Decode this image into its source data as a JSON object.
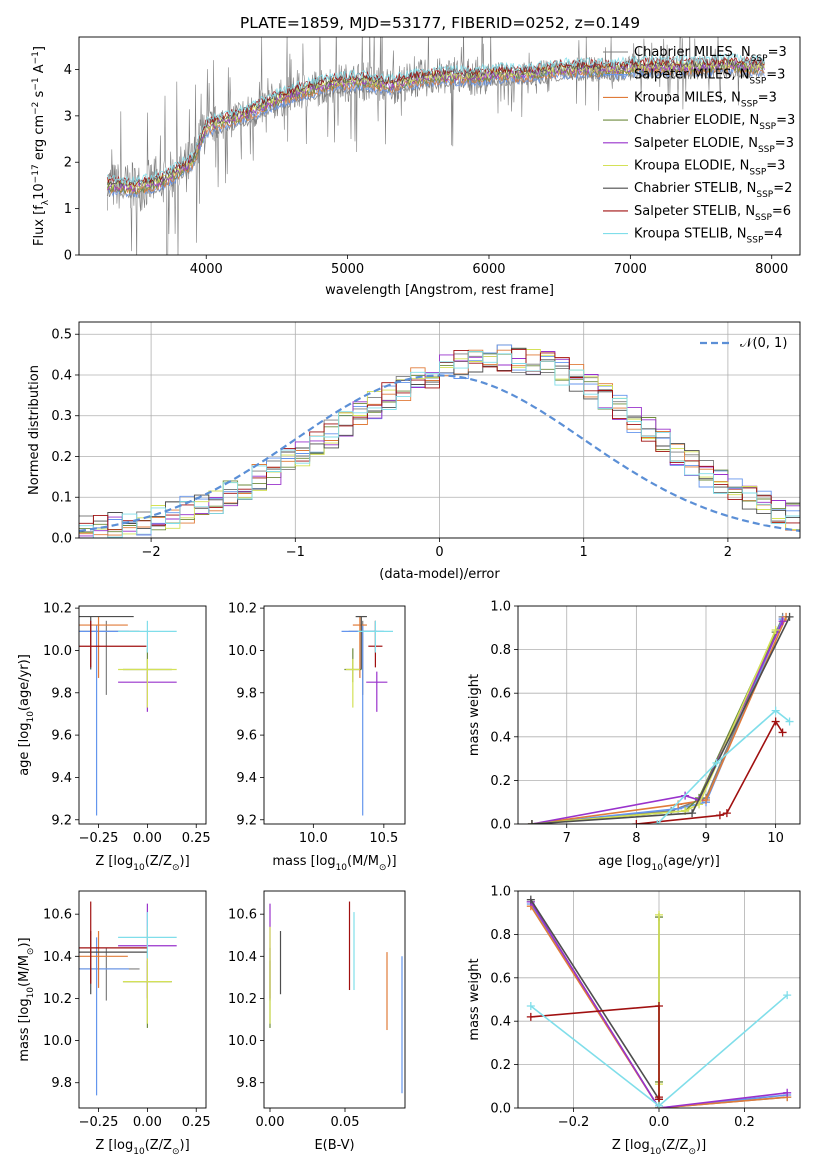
{
  "palette": {
    "chabrier_miles": "#7f7f7f",
    "salpeter_miles": "#6495ed",
    "kroupa_miles": "#e07b39",
    "chabrier_elodie": "#6e8b3d",
    "salpeter_elodie": "#9932cc",
    "kroupa_elodie": "#d4e157",
    "chabrier_stelib": "#4d4d4d",
    "salpeter_stelib": "#a01010",
    "kroupa_stelib": "#80deea",
    "gaussian": "#5b8fd6",
    "pink": "#e377c2",
    "orange2": "#ff7f0e",
    "lime": "#9acd32",
    "grid": "#b0b0b0"
  },
  "models": [
    {
      "name": "Chabrier MILES",
      "nssp": "3",
      "color": "#7f7f7f"
    },
    {
      "name": "Salpeter MILES",
      "nssp": "3",
      "color": "#6495ed"
    },
    {
      "name": "Kroupa MILES",
      "nssp": "3",
      "color": "#e07b39"
    },
    {
      "name": "Chabrier ELODIE",
      "nssp": "3",
      "color": "#6e8b3d"
    },
    {
      "name": "Salpeter ELODIE",
      "nssp": "3",
      "color": "#9932cc"
    },
    {
      "name": "Kroupa ELODIE",
      "nssp": "3",
      "color": "#d4e157"
    },
    {
      "name": "Chabrier STELIB",
      "nssp": "2",
      "color": "#4d4d4d"
    },
    {
      "name": "Salpeter STELIB",
      "nssp": "6",
      "color": "#a01010"
    },
    {
      "name": "Kroupa STELIB",
      "nssp": "4",
      "color": "#80deea"
    }
  ],
  "chart_data": [
    {
      "type": "line",
      "title": "PLATE=1859, MJD=53177, FIBERID=0252, z=0.149",
      "xlabel": "wavelength [Angstrom, rest frame]",
      "ylabel": "Flux [f$_\\lambda$10$^{-17}$ erg cm$^{-2}$ s$^{-1}$ A$^{-1}$]",
      "ylabel_parts": [
        "Flux [f",
        "λ",
        "10",
        "−17",
        " erg cm",
        "−2",
        " s",
        "−1",
        " A",
        "−1",
        "]"
      ],
      "xlim": [
        3100,
        8200
      ],
      "ylim": [
        0,
        4.7
      ],
      "xticks": [
        4000,
        5000,
        6000,
        7000,
        8000
      ],
      "yticks": [
        0,
        1,
        2,
        3,
        4
      ],
      "legend": "top-right",
      "legend_entries": [
        "Chabrier MILES, N_SSP=3",
        "Salpeter MILES, N_SSP=3",
        "Kroupa MILES, N_SSP=3",
        "Chabrier ELODIE, N_SSP=3",
        "Salpeter ELODIE, N_SSP=3",
        "Kroupa ELODIE, N_SSP=3",
        "Chabrier STELIB, N_SSP=2",
        "Salpeter STELIB, N_SSP=6",
        "Kroupa STELIB, N_SSP=4"
      ],
      "legend_labels": [
        {
          "pre": "Chabrier MILES, N",
          "sub": "SSP",
          "post": "=3"
        },
        {
          "pre": "Salpeter MILES, N",
          "sub": "SSP",
          "post": "=3"
        },
        {
          "pre": "Kroupa MILES, N",
          "sub": "SSP",
          "post": "=3"
        },
        {
          "pre": "Chabrier ELODIE, N",
          "sub": "SSP",
          "post": "=3"
        },
        {
          "pre": "Salpeter ELODIE, N",
          "sub": "SSP",
          "post": "=3"
        },
        {
          "pre": "Kroupa ELODIE, N",
          "sub": "SSP",
          "post": "=3"
        },
        {
          "pre": "Chabrier STELIB, N",
          "sub": "SSP",
          "post": "=2"
        },
        {
          "pre": "Salpeter STELIB, N",
          "sub": "SSP",
          "post": "=6"
        },
        {
          "pre": "Kroupa STELIB, N",
          "sub": "SSP",
          "post": "=4"
        }
      ],
      "continuum": {
        "x": [
          3300,
          3500,
          3700,
          3900,
          4000,
          4100,
          4300,
          4500,
          4700,
          4900,
          5100,
          5300,
          5500,
          5700,
          5900,
          6100,
          6300,
          6500,
          6700,
          6900,
          7100,
          7300,
          7500,
          7700,
          7900
        ],
        "y": [
          1.5,
          1.45,
          1.6,
          2.0,
          2.75,
          2.85,
          3.05,
          3.35,
          3.55,
          3.7,
          3.75,
          3.65,
          3.8,
          3.85,
          3.85,
          3.9,
          3.9,
          4.0,
          4.0,
          4.0,
          4.05,
          4.05,
          4.05,
          4.1,
          4.05
        ]
      }
    },
    {
      "type": "histogram",
      "xlabel": "(data-model)/error",
      "ylabel": "Normed distribution",
      "xlim": [
        -2.5,
        2.5
      ],
      "ylim": [
        0,
        0.53
      ],
      "xticks": [
        -2,
        -1,
        0,
        1,
        2
      ],
      "xtick_labels": [
        "−2",
        "−1",
        "0",
        "1",
        "2"
      ],
      "yticks": [
        0.0,
        0.1,
        0.2,
        0.3,
        0.4,
        0.5
      ],
      "grid": true,
      "legend": "top-right",
      "legend_label": "𝒩(0, 1)",
      "bin_width": 0.1,
      "bin_start": -2.5,
      "series_ref": [
        0.02,
        0.024,
        0.028,
        0.034,
        0.041,
        0.049,
        0.058,
        0.069,
        0.081,
        0.095,
        0.11,
        0.127,
        0.146,
        0.166,
        0.187,
        0.209,
        0.232,
        0.256,
        0.279,
        0.303,
        0.325,
        0.347,
        0.367,
        0.385,
        0.401,
        0.415,
        0.426,
        0.434,
        0.439,
        0.44,
        0.44,
        0.435,
        0.425,
        0.41,
        0.392,
        0.37,
        0.346,
        0.32,
        0.293,
        0.265,
        0.237,
        0.21,
        0.184,
        0.16,
        0.137,
        0.116,
        0.097,
        0.08,
        0.066,
        0.053
      ],
      "gaussian_x": [
        -2.5,
        -2.0,
        -1.5,
        -1.0,
        -0.5,
        0.0,
        0.5,
        1.0,
        1.5,
        2.0,
        2.5
      ],
      "gaussian_y": [
        0.018,
        0.054,
        0.13,
        0.242,
        0.352,
        0.399,
        0.352,
        0.242,
        0.13,
        0.054,
        0.018
      ]
    },
    {
      "type": "errorbar",
      "xlabel_parts": [
        "Z [log",
        "10",
        "(Z/Z",
        "⊙",
        ")]"
      ],
      "ylabel_parts": [
        "age  [log",
        "10",
        "(age/yr)]"
      ],
      "xlim": [
        -0.35,
        0.3
      ],
      "ylim": [
        9.18,
        10.21
      ],
      "xticks": [
        -0.25,
        0.0,
        0.25
      ],
      "xtick_labels": [
        "−0.25",
        "0.00",
        "0.25"
      ],
      "yticks": [
        9.2,
        9.4,
        9.6,
        9.8,
        10.0,
        10.2
      ],
      "points": [
        {
          "model": 0,
          "x": -0.21,
          "y": 10.09,
          "xerr": 0.34,
          "yerr_lo": 0.3,
          "yerr_hi": 0.05
        },
        {
          "model": 1,
          "x": -0.26,
          "y": 10.09,
          "xerr": 0.33,
          "yerr_lo": 0.87,
          "yerr_hi": 0.03
        },
        {
          "model": 2,
          "x": -0.25,
          "y": 10.12,
          "xerr": 0.3,
          "yerr_lo": 0.25,
          "yerr_hi": 0.04
        },
        {
          "model": 3,
          "x": 0.0,
          "y": 9.91,
          "xerr": 0.25,
          "yerr_lo": 0.06,
          "yerr_hi": 0.1
        },
        {
          "model": 4,
          "x": 0.0,
          "y": 9.85,
          "xerr": 0.3,
          "yerr_lo": 0.14,
          "yerr_hi": 0.05
        },
        {
          "model": 5,
          "x": 0.0,
          "y": 9.91,
          "xerr": 0.3,
          "yerr_lo": 0.18,
          "yerr_hi": 0.05
        },
        {
          "model": 6,
          "x": -0.29,
          "y": 10.16,
          "xerr": 0.44,
          "yerr_lo": 0.25,
          "yerr_hi": 0.0
        },
        {
          "model": 7,
          "x": -0.29,
          "y": 10.02,
          "xerr": 0.57,
          "yerr_lo": 0.1,
          "yerr_hi": 0.12
        },
        {
          "model": 8,
          "x": 0.0,
          "y": 10.09,
          "xerr": 0.3,
          "yerr_lo": 0.1,
          "yerr_hi": 0.05
        }
      ]
    },
    {
      "type": "errorbar",
      "xlabel_parts": [
        "mass [log",
        "10",
        "(M/M",
        "⊙",
        ")]"
      ],
      "xlim": [
        9.65,
        10.65
      ],
      "ylim": [
        9.18,
        10.21
      ],
      "xticks": [
        10.0,
        10.5
      ],
      "xtick_labels": [
        "10.0",
        "10.5"
      ],
      "yticks": [
        9.2,
        9.4,
        9.6,
        9.8,
        10.0,
        10.2
      ],
      "points": [
        {
          "model": 0,
          "x": 10.35,
          "y": 10.09,
          "xerr": 0.2,
          "yerr_lo": 0.3,
          "yerr_hi": 0.05
        },
        {
          "model": 1,
          "x": 10.35,
          "y": 10.09,
          "xerr": 0.3,
          "yerr_lo": 0.87,
          "yerr_hi": 0.03
        },
        {
          "model": 2,
          "x": 10.33,
          "y": 10.12,
          "xerr": 0.1,
          "yerr_lo": 0.25,
          "yerr_hi": 0.04
        },
        {
          "model": 3,
          "x": 10.28,
          "y": 9.91,
          "xerr": 0.12,
          "yerr_lo": 0.06,
          "yerr_hi": 0.1
        },
        {
          "model": 4,
          "x": 10.45,
          "y": 9.85,
          "xerr": 0.15,
          "yerr_lo": 0.14,
          "yerr_hi": 0.05
        },
        {
          "model": 5,
          "x": 10.28,
          "y": 9.91,
          "xerr": 0.1,
          "yerr_lo": 0.18,
          "yerr_hi": 0.05
        },
        {
          "model": 6,
          "x": 10.34,
          "y": 10.16,
          "xerr": 0.08,
          "yerr_lo": 0.25,
          "yerr_hi": 0.0
        },
        {
          "model": 7,
          "x": 10.44,
          "y": 10.02,
          "xerr": 0.1,
          "yerr_lo": 0.1,
          "yerr_hi": 0.12
        },
        {
          "model": 8,
          "x": 10.44,
          "y": 10.09,
          "xerr": 0.25,
          "yerr_lo": 0.1,
          "yerr_hi": 0.05
        }
      ]
    },
    {
      "type": "line",
      "xlabel_parts": [
        "age  [log",
        "10",
        "(age/yr)]"
      ],
      "ylabel": "mass weight",
      "xlim": [
        6.3,
        10.35
      ],
      "ylim": [
        0,
        1.0
      ],
      "xticks": [
        7,
        8,
        9,
        10
      ],
      "yticks": [
        0.0,
        0.2,
        0.4,
        0.6,
        0.8,
        1.0
      ],
      "grid": true,
      "series": [
        {
          "model": 0,
          "x": [
            6.5,
            8.5,
            9.0,
            10.1
          ],
          "y": [
            0.0,
            0.06,
            0.12,
            0.95
          ]
        },
        {
          "model": 1,
          "x": [
            6.5,
            8.6,
            9.0,
            10.1
          ],
          "y": [
            0.0,
            0.07,
            0.1,
            0.94
          ]
        },
        {
          "model": 2,
          "x": [
            6.5,
            8.6,
            9.0,
            10.15
          ],
          "y": [
            0.0,
            0.09,
            0.11,
            0.95
          ]
        },
        {
          "model": 3,
          "x": [
            6.5,
            8.7,
            8.9,
            10.0
          ],
          "y": [
            0.0,
            0.06,
            0.12,
            0.88
          ]
        },
        {
          "model": 4,
          "x": [
            6.5,
            8.7,
            8.9,
            10.1
          ],
          "y": [
            0.0,
            0.13,
            0.11,
            0.93
          ]
        },
        {
          "model": 5,
          "x": [
            6.5,
            8.7,
            8.9,
            10.0
          ],
          "y": [
            0.0,
            0.06,
            0.09,
            0.89
          ]
        },
        {
          "model": 6,
          "x": [
            6.5,
            8.8,
            10.2
          ],
          "y": [
            0.0,
            0.05,
            0.95
          ]
        },
        {
          "model": 7,
          "x": [
            8.0,
            9.2,
            9.3,
            10.0,
            10.1
          ],
          "y": [
            0.0,
            0.04,
            0.05,
            0.47,
            0.42
          ]
        },
        {
          "model": 8,
          "x": [
            8.3,
            9.15,
            10.0,
            10.2
          ],
          "y": [
            0.0,
            0.28,
            0.52,
            0.47
          ]
        }
      ]
    },
    {
      "type": "errorbar",
      "xlabel_parts": [
        "Z [log",
        "10",
        "(Z/Z",
        "⊙",
        ")]"
      ],
      "ylabel_parts": [
        "mass [log",
        "10",
        "(M/M",
        "⊙",
        ")]"
      ],
      "xlim": [
        -0.35,
        0.3
      ],
      "ylim": [
        9.68,
        10.71
      ],
      "xticks": [
        -0.25,
        0.0,
        0.25
      ],
      "xtick_labels": [
        "−0.25",
        "0.00",
        "0.25"
      ],
      "yticks": [
        9.8,
        10.0,
        10.2,
        10.4,
        10.6
      ],
      "points": [
        {
          "model": 0,
          "x": -0.21,
          "y": 10.34,
          "xerr": 0.34,
          "yerr_lo": 0.15,
          "yerr_hi": 0.1
        },
        {
          "model": 1,
          "x": -0.26,
          "y": 10.34,
          "xerr": 0.33,
          "yerr_lo": 0.6,
          "yerr_hi": 0.15
        },
        {
          "model": 2,
          "x": -0.25,
          "y": 10.4,
          "xerr": 0.3,
          "yerr_lo": 0.15,
          "yerr_hi": 0.12
        },
        {
          "model": 3,
          "x": 0.0,
          "y": 10.28,
          "xerr": 0.25,
          "yerr_lo": 0.22,
          "yerr_hi": 0.1
        },
        {
          "model": 4,
          "x": 0.0,
          "y": 10.45,
          "xerr": 0.3,
          "yerr_lo": 0.25,
          "yerr_hi": 0.2
        },
        {
          "model": 5,
          "x": 0.0,
          "y": 10.28,
          "xerr": 0.25,
          "yerr_lo": 0.2,
          "yerr_hi": 0.26
        },
        {
          "model": 6,
          "x": -0.29,
          "y": 10.42,
          "xerr": 0.58,
          "yerr_lo": 0.2,
          "yerr_hi": 0.1
        },
        {
          "model": 7,
          "x": -0.29,
          "y": 10.44,
          "xerr": 0.58,
          "yerr_lo": 0.17,
          "yerr_hi": 0.22
        },
        {
          "model": 8,
          "x": 0.0,
          "y": 10.49,
          "xerr": 0.3,
          "yerr_lo": 0.1,
          "yerr_hi": 0.12
        }
      ]
    },
    {
      "type": "errorbar",
      "xlabel": "E(B-V)",
      "xlim": [
        -0.004,
        0.09
      ],
      "ylim": [
        9.68,
        10.71
      ],
      "xticks": [
        0.0,
        0.05
      ],
      "xtick_labels": [
        "0.00",
        "0.05"
      ],
      "yticks": [
        9.8,
        10.0,
        10.2,
        10.4,
        10.6
      ],
      "points": [
        {
          "model": 0,
          "x": 0.0,
          "y": 10.34,
          "yerr_lo": 0.15,
          "yerr_hi": 0.1
        },
        {
          "model": 1,
          "x": 0.088,
          "y": 10.1,
          "yerr_lo": 0.35,
          "yerr_hi": 0.3
        },
        {
          "model": 2,
          "x": 0.078,
          "y": 10.23,
          "yerr_lo": 0.18,
          "yerr_hi": 0.19
        },
        {
          "model": 3,
          "x": 0.0,
          "y": 10.28,
          "yerr_lo": 0.22,
          "yerr_hi": 0.1
        },
        {
          "model": 4,
          "x": 0.0,
          "y": 10.45,
          "yerr_lo": 0.25,
          "yerr_hi": 0.2
        },
        {
          "model": 5,
          "x": 0.0,
          "y": 10.28,
          "yerr_lo": 0.2,
          "yerr_hi": 0.26
        },
        {
          "model": 6,
          "x": 0.007,
          "y": 10.42,
          "yerr_lo": 0.2,
          "yerr_hi": 0.1
        },
        {
          "model": 7,
          "x": 0.053,
          "y": 10.44,
          "yerr_lo": 0.2,
          "yerr_hi": 0.22
        },
        {
          "model": 8,
          "x": 0.056,
          "y": 10.44,
          "yerr_lo": 0.2,
          "yerr_hi": 0.17
        }
      ]
    },
    {
      "type": "line",
      "xlabel_parts": [
        "Z [log",
        "10",
        "(Z/Z",
        "⊙",
        ")]"
      ],
      "ylabel": "mass weight",
      "xlim": [
        -0.33,
        0.33
      ],
      "ylim": [
        0,
        1.0
      ],
      "xticks": [
        -0.2,
        0.0,
        0.2
      ],
      "xtick_labels": [
        "−0.2",
        "0.0",
        "0.2"
      ],
      "yticks": [
        0.0,
        0.2,
        0.4,
        0.6,
        0.8,
        1.0
      ],
      "grid": true,
      "series": [
        {
          "model": 0,
          "x": [
            -0.3,
            0.0,
            0.3
          ],
          "y": [
            0.95,
            0.0,
            0.05
          ]
        },
        {
          "model": 1,
          "x": [
            -0.3,
            0.0,
            0.3
          ],
          "y": [
            0.94,
            0.0,
            0.06
          ]
        },
        {
          "model": 2,
          "x": [
            -0.3,
            0.0,
            0.3
          ],
          "y": [
            0.93,
            0.0,
            0.05
          ]
        },
        {
          "model": 3,
          "x": [
            0.0,
            0.0,
            0.0
          ],
          "y": [
            0.88,
            0.12,
            0.0
          ]
        },
        {
          "model": 4,
          "x": [
            -0.3,
            0.0,
            0.3
          ],
          "y": [
            0.95,
            0.0,
            0.07
          ]
        },
        {
          "model": 5,
          "x": [
            0.0,
            0.0,
            0.0
          ],
          "y": [
            0.89,
            0.11,
            0.0
          ]
        },
        {
          "model": 6,
          "x": [
            -0.3,
            0.0
          ],
          "y": [
            0.96,
            0.04
          ]
        },
        {
          "model": 7,
          "x": [
            -0.3,
            0.0,
            0.0,
            0.0
          ],
          "y": [
            0.42,
            0.47,
            0.04,
            0.05
          ]
        },
        {
          "model": 8,
          "x": [
            -0.3,
            0.0,
            0.3
          ],
          "y": [
            0.47,
            0.01,
            0.52
          ]
        }
      ]
    }
  ]
}
